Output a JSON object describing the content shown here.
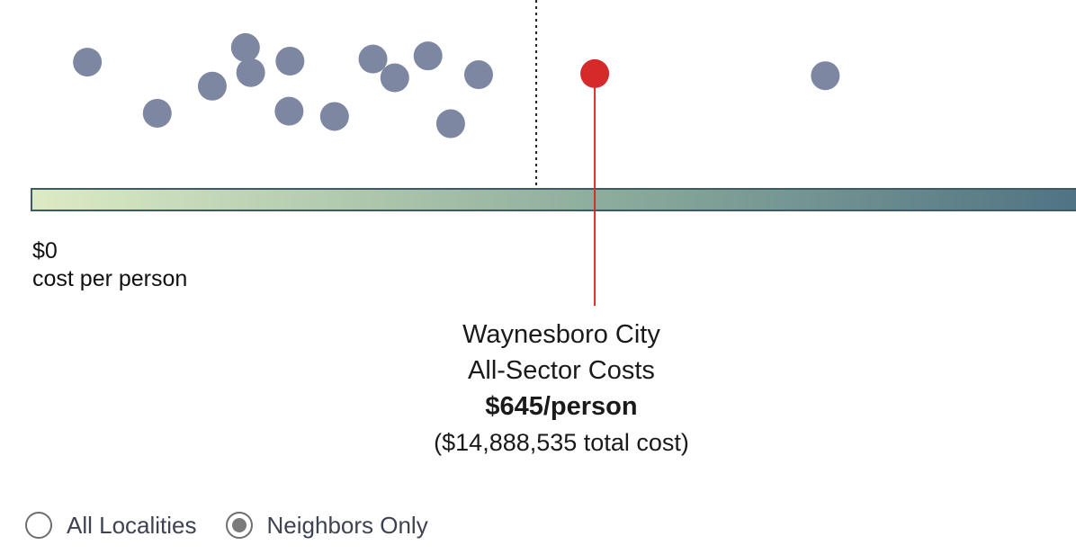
{
  "chart_data": {
    "type": "scatter",
    "axis_min_label": "$0",
    "axis_unit_label": "cost per person",
    "x_min": 0,
    "x_max": 1194,
    "reference_value": 578,
    "points": [
      {
        "x": 64,
        "y": 0.32
      },
      {
        "x": 144,
        "y": 0.81
      },
      {
        "x": 207,
        "y": 0.55
      },
      {
        "x": 245,
        "y": 0.18
      },
      {
        "x": 251,
        "y": 0.42
      },
      {
        "x": 295,
        "y": 0.79
      },
      {
        "x": 296,
        "y": 0.31
      },
      {
        "x": 347,
        "y": 0.84
      },
      {
        "x": 391,
        "y": 0.29
      },
      {
        "x": 416,
        "y": 0.47
      },
      {
        "x": 454,
        "y": 0.26
      },
      {
        "x": 480,
        "y": 0.91
      },
      {
        "x": 512,
        "y": 0.44
      },
      {
        "x": 909,
        "y": 0.45
      }
    ],
    "highlight": {
      "x": 645,
      "y": 0.43
    },
    "colors": {
      "point": "#7e87a2",
      "highlight": "#d42a2a",
      "gradient_start": "#dcebc4",
      "gradient_mid": "#93b29f",
      "gradient_end": "#4f7383",
      "bar_border": "#3c5b66"
    }
  },
  "callout": {
    "locality": "Waynesboro City",
    "sector": "All-Sector Costs",
    "per_person": "$645/person",
    "total": "($14,888,535 total cost)"
  },
  "filters": {
    "options": [
      {
        "label": "All Localities",
        "checked": false
      },
      {
        "label": "Neighbors Only",
        "checked": true
      }
    ]
  }
}
